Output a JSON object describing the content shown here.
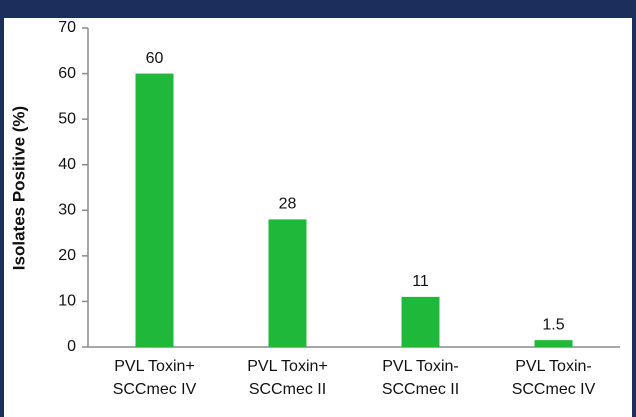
{
  "chart_data": {
    "type": "bar",
    "y_label": "Isolates Positive (%)",
    "categories": [
      "PVL Toxin+\nSCCmec  IV",
      "PVL Toxin+\nSCCmec  II",
      "PVL Toxin-\nSCCmec  II",
      "PVL Toxin-\nSCCmec  IV"
    ],
    "values": [
      60,
      28,
      11,
      1.5
    ],
    "color": "#1fb83a",
    "ylim": [
      0,
      70
    ],
    "yticks": [
      0,
      10,
      20,
      30,
      40,
      50,
      60,
      70
    ],
    "grid": false
  }
}
